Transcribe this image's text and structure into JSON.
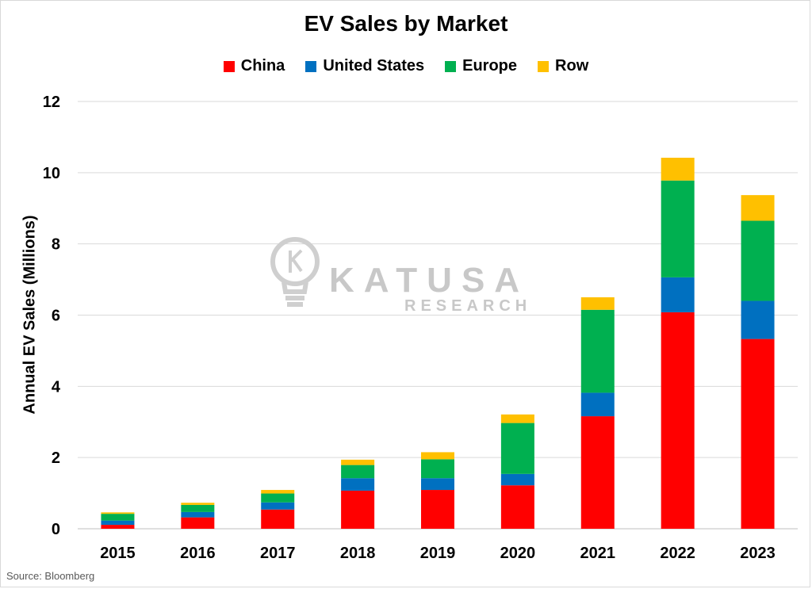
{
  "chart_data": {
    "type": "bar",
    "stacked": true,
    "title": "EV Sales by Market",
    "xlabel": "",
    "ylabel": "Annual EV Sales (Millions)",
    "categories": [
      "2015",
      "2016",
      "2017",
      "2018",
      "2019",
      "2020",
      "2021",
      "2022",
      "2023"
    ],
    "series": [
      {
        "name": "China",
        "color": "#ff0000",
        "values": [
          0.11,
          0.32,
          0.54,
          1.07,
          1.09,
          1.22,
          3.16,
          6.08,
          5.33
        ]
      },
      {
        "name": "United States",
        "color": "#0070c0",
        "values": [
          0.12,
          0.15,
          0.2,
          0.35,
          0.33,
          0.32,
          0.66,
          0.98,
          1.07
        ]
      },
      {
        "name": "Europe",
        "color": "#00b050",
        "values": [
          0.19,
          0.2,
          0.25,
          0.37,
          0.53,
          1.43,
          2.33,
          2.72,
          2.25
        ]
      },
      {
        "name": "Row",
        "color": "#ffc000",
        "values": [
          0.04,
          0.06,
          0.1,
          0.15,
          0.2,
          0.24,
          0.35,
          0.64,
          0.72
        ]
      }
    ],
    "ylim": [
      0,
      12
    ],
    "yticks": [
      "0",
      "2",
      "4",
      "6",
      "8",
      "10",
      "12"
    ],
    "grid": true,
    "legend_position": "top"
  },
  "watermark": {
    "brand": "KATUSA",
    "sub": "RESEARCH"
  },
  "source": "Source: Bloomberg"
}
